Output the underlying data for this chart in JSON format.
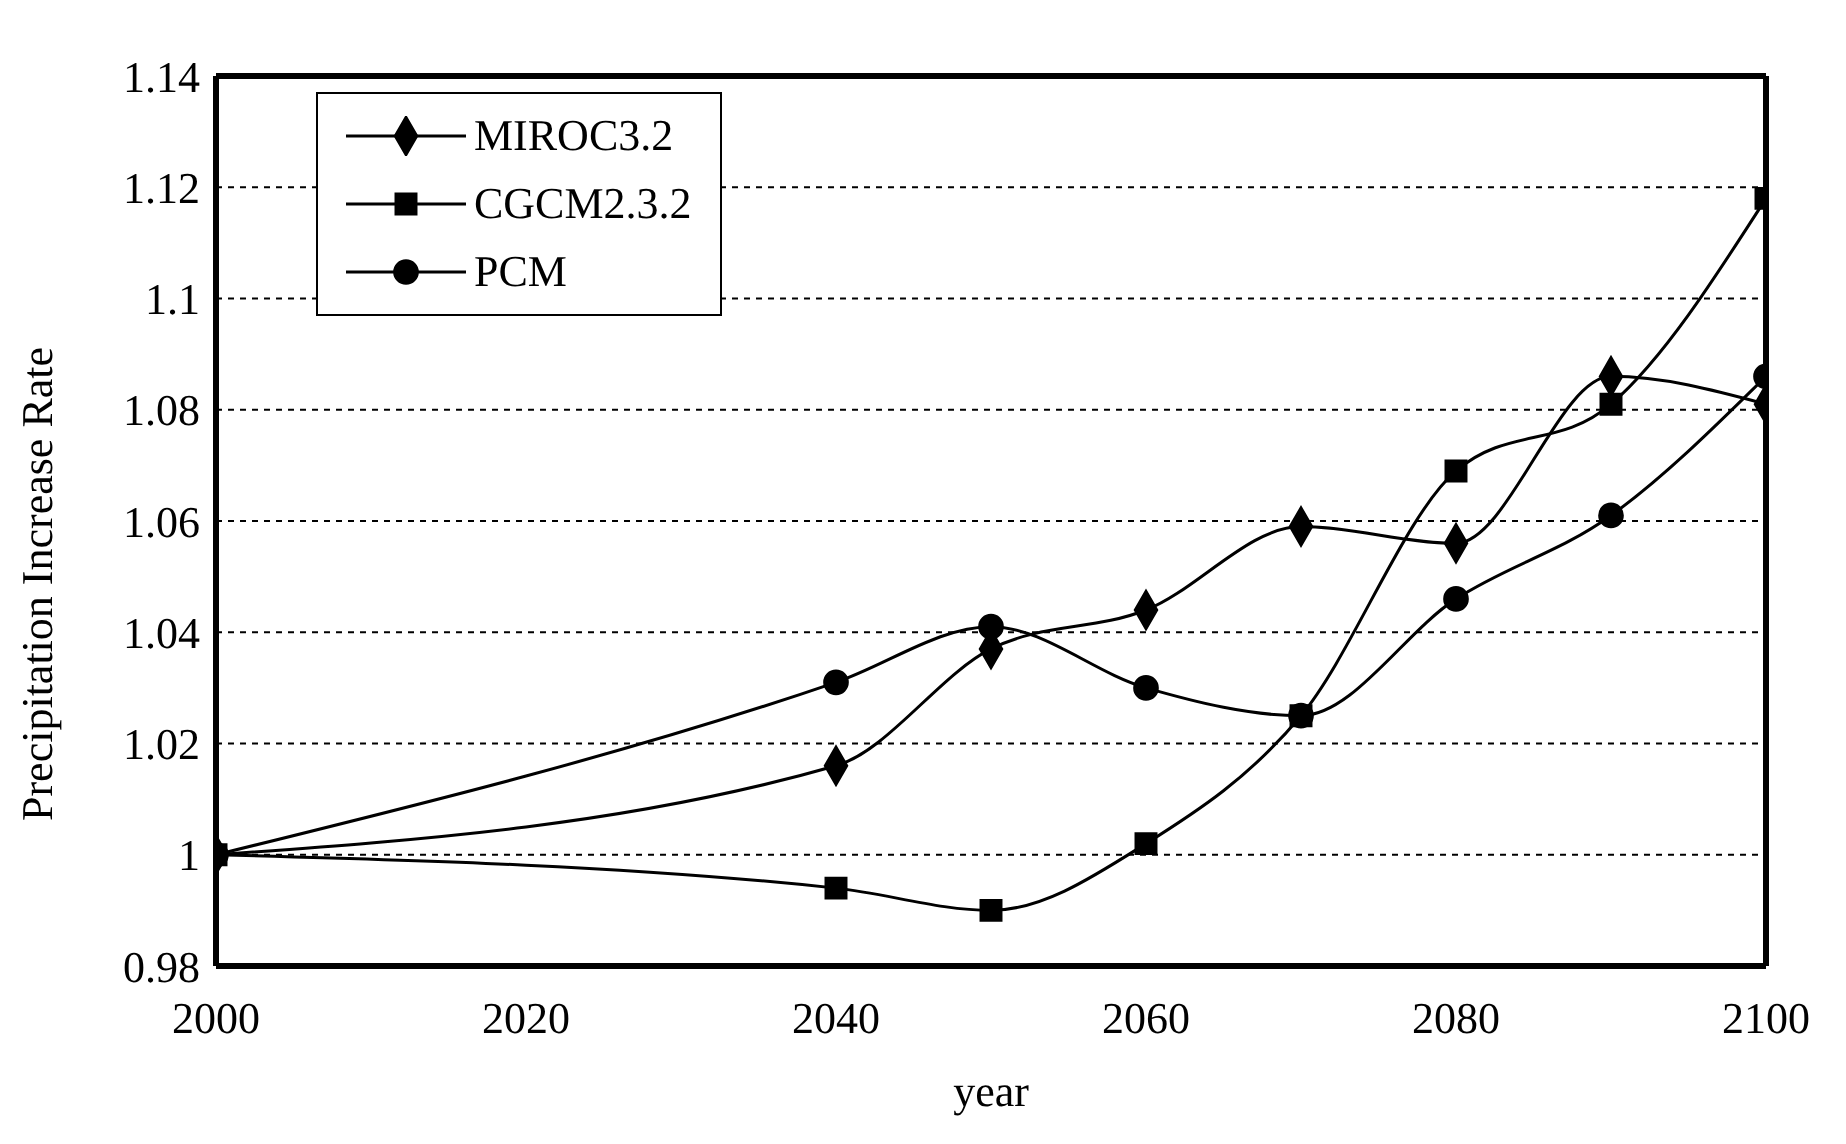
{
  "chart_data": {
    "type": "line",
    "xlabel": "year",
    "ylabel": "Precipitation Increase Rate",
    "x": [
      2000,
      2040,
      2050,
      2060,
      2070,
      2080,
      2090,
      2100
    ],
    "series": [
      {
        "name": "MIROC3.2",
        "color": "#000000",
        "marker": "diamond",
        "values": [
          1.0,
          1.016,
          1.037,
          1.044,
          1.059,
          1.056,
          1.086,
          1.081
        ]
      },
      {
        "name": "CGCM2.3.2",
        "color": "#000000",
        "marker": "square",
        "values": [
          1.0,
          0.994,
          0.99,
          1.002,
          1.025,
          1.069,
          1.081,
          1.118
        ]
      },
      {
        "name": "PCM",
        "color": "#000000",
        "marker": "circle",
        "values": [
          1.0,
          1.031,
          1.041,
          1.03,
          1.025,
          1.046,
          1.061,
          1.086
        ]
      }
    ],
    "xlim": [
      2000,
      2100
    ],
    "xticks": [
      2000,
      2020,
      2040,
      2060,
      2080,
      2100
    ],
    "ylim": [
      0.98,
      1.14
    ],
    "yticks": [
      0.98,
      1,
      1.02,
      1.04,
      1.06,
      1.08,
      1.1,
      1.12,
      1.14
    ],
    "grid": "y",
    "legend": "top left",
    "line_style": "solid"
  }
}
